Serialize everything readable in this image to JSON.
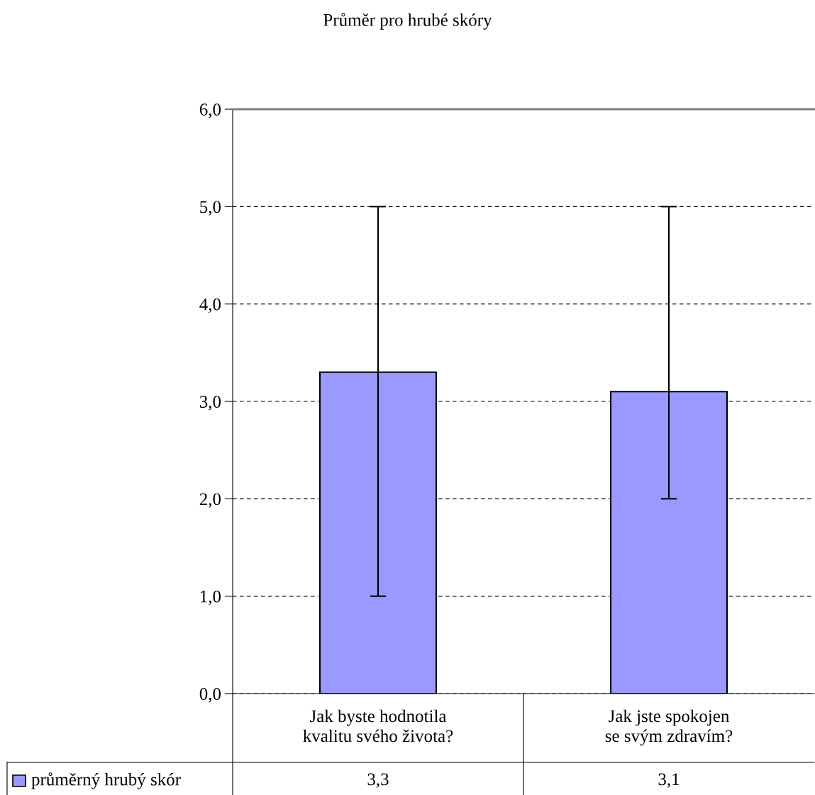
{
  "chart_data": {
    "type": "bar",
    "title": "Průměr pro hrubé skóry",
    "categories": [
      "Jak byste hodnotila kvalitu svého života?",
      "Jak jste spokojen se svým zdravím?"
    ],
    "series": [
      {
        "name": "průměrný hrubý skór",
        "color": "#9999ff",
        "values": [
          3.3,
          3.1
        ],
        "errors": [
          [
            1.0,
            5.0
          ],
          [
            2.0,
            5.0
          ]
        ],
        "value_labels": [
          "3,3",
          "3,1"
        ]
      }
    ],
    "ylim": [
      0,
      6
    ],
    "yticks": [
      {
        "value": 0,
        "label": "0,0"
      },
      {
        "value": 1,
        "label": "1,0"
      },
      {
        "value": 2,
        "label": "2,0"
      },
      {
        "value": 3,
        "label": "3,0"
      },
      {
        "value": 4,
        "label": "4,0"
      },
      {
        "value": 5,
        "label": "5,0"
      },
      {
        "value": 6,
        "label": "6,0"
      }
    ],
    "grid": "y",
    "legend": "bottom left"
  }
}
